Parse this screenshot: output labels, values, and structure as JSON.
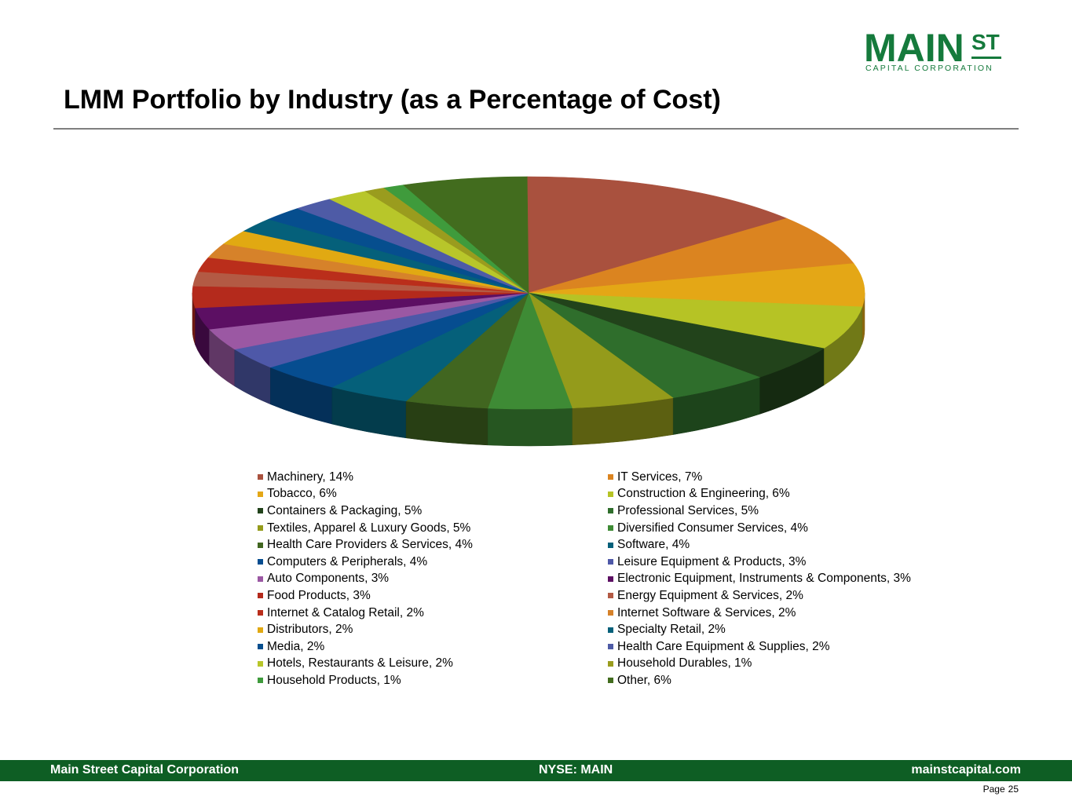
{
  "logo": {
    "main": "MAIN",
    "st": "ST",
    "sub": "CAPITAL CORPORATION"
  },
  "page_title": "LMM Portfolio by Industry (as a Percentage of Cost)",
  "chart_data": {
    "type": "pie",
    "title": "LMM Portfolio by Industry (as a Percentage of Cost)",
    "unit": "%",
    "style": "3d",
    "legend_position": "bottom",
    "slices": [
      {
        "label": "Machinery, 14%",
        "name": "Machinery",
        "value": 14,
        "color": "#a9513e"
      },
      {
        "label": "IT Services, 7%",
        "name": "IT Services",
        "value": 7,
        "color": "#db8420"
      },
      {
        "label": "Tobacco, 6%",
        "name": "Tobacco",
        "value": 6,
        "color": "#e4a716"
      },
      {
        "label": "Construction & Engineering, 6%",
        "name": "Construction & Engineering",
        "value": 6,
        "color": "#b6c325"
      },
      {
        "label": "Containers & Packaging, 5%",
        "name": "Containers & Packaging",
        "value": 5,
        "color": "#22431b"
      },
      {
        "label": "Professional Services, 5%",
        "name": "Professional Services",
        "value": 5,
        "color": "#2f6e2c"
      },
      {
        "label": "Textiles, Apparel & Luxury Goods, 5%",
        "name": "Textiles, Apparel & Luxury Goods",
        "value": 5,
        "color": "#949b1b"
      },
      {
        "label": "Diversified Consumer Services, 4%",
        "name": "Diversified Consumer Services",
        "value": 4,
        "color": "#3e8b35"
      },
      {
        "label": "Health Care Providers & Services, 4%",
        "name": "Health Care Providers & Services",
        "value": 4,
        "color": "#416620"
      },
      {
        "label": "Software, 4%",
        "name": "Software",
        "value": 4,
        "color": "#05607a"
      },
      {
        "label": "Computers & Peripherals, 4%",
        "name": "Computers & Peripherals",
        "value": 4,
        "color": "#064d90"
      },
      {
        "label": "Leisure Equipment & Products, 3%",
        "name": "Leisure Equipment & Products",
        "value": 3,
        "color": "#4e58a8"
      },
      {
        "label": "Auto Components, 3%",
        "name": "Auto Components",
        "value": 3,
        "color": "#9b58a3"
      },
      {
        "label": "Electronic Equipment, Instruments & Components, 3%",
        "name": "Electronic Equipment, Instruments & Components",
        "value": 3,
        "color": "#5c0f63"
      },
      {
        "label": "Food Products, 3%",
        "name": "Food Products",
        "value": 3,
        "color": "#b42a1c"
      },
      {
        "label": "Energy Equipment & Services, 2%",
        "name": "Energy Equipment & Services",
        "value": 2,
        "color": "#b35a44"
      },
      {
        "label": "Internet & Catalog Retail, 2%",
        "name": "Internet & Catalog Retail",
        "value": 2,
        "color": "#ba2e1b"
      },
      {
        "label": "Internet Software & Services, 2%",
        "name": "Internet Software & Services",
        "value": 2,
        "color": "#d6822a"
      },
      {
        "label": "Distributors, 2%",
        "name": "Distributors",
        "value": 2,
        "color": "#e1a912"
      },
      {
        "label": "Specialty Retail, 2%",
        "name": "Specialty Retail",
        "value": 2,
        "color": "#05607a"
      },
      {
        "label": "Media, 2%",
        "name": "Media",
        "value": 2,
        "color": "#064e8e"
      },
      {
        "label": "Health Care Equipment & Supplies, 2%",
        "name": "Health Care Equipment & Supplies",
        "value": 2,
        "color": "#4e5ba6"
      },
      {
        "label": "Hotels, Restaurants & Leisure, 2%",
        "name": "Hotels, Restaurants & Leisure",
        "value": 2,
        "color": "#b8c62a"
      },
      {
        "label": "Household Durables, 1%",
        "name": "Household Durables",
        "value": 1,
        "color": "#9a9c1e"
      },
      {
        "label": "Household Products, 1%",
        "name": "Household Products",
        "value": 1,
        "color": "#3f9b3c"
      },
      {
        "label": "Other, 6%",
        "name": "Other",
        "value": 6,
        "color": "#426c1e"
      }
    ]
  },
  "footer": {
    "company": "Main Street Capital Corporation",
    "ticker": "NYSE: MAIN",
    "website": "mainstcapital.com",
    "page_label": "Page",
    "page_number": "25"
  }
}
